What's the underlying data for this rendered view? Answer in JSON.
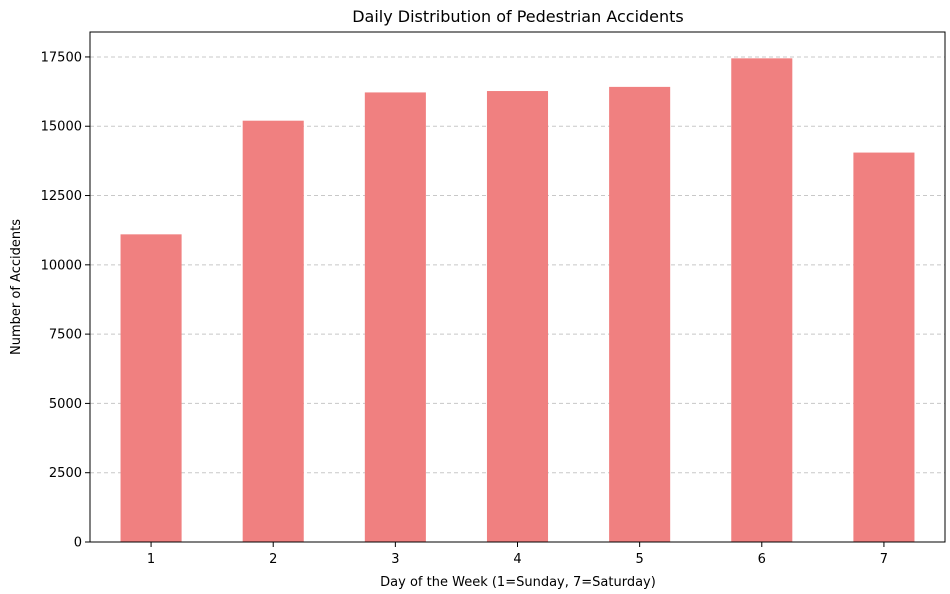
{
  "chart_data": {
    "type": "bar",
    "title": "Daily Distribution of Pedestrian Accidents",
    "xlabel": "Day of the Week (1=Sunday, 7=Saturday)",
    "ylabel": "Number of Accidents",
    "categories": [
      "1",
      "2",
      "3",
      "4",
      "5",
      "6",
      "7"
    ],
    "values": [
      11100,
      15200,
      16220,
      16270,
      16420,
      17450,
      14050
    ],
    "ylim": [
      0,
      18400
    ],
    "yticks": [
      0,
      2500,
      5000,
      7500,
      10000,
      12500,
      15000,
      17500
    ],
    "ytick_labels": [
      "0",
      "2500",
      "5000",
      "7500",
      "10000",
      "12500",
      "15000",
      "17500"
    ],
    "grid": "y-dashed",
    "bar_color": "#f08080",
    "grid_color": "#c8c8c8"
  }
}
